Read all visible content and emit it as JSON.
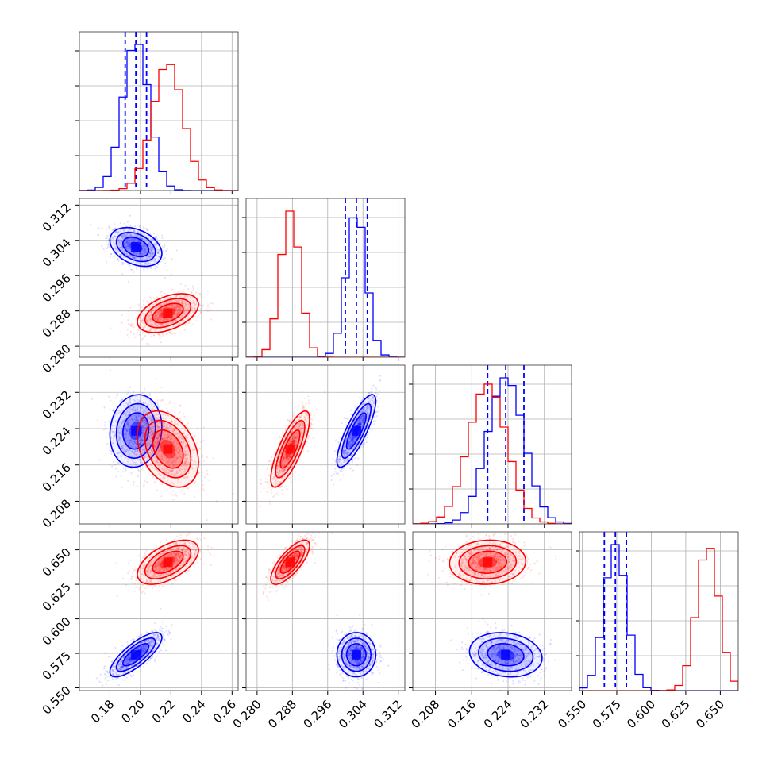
{
  "chart_data": {
    "type": "corner",
    "title": "",
    "series": [
      {
        "name": "",
        "color": "#0000ff",
        "mean": [
          0.197,
          0.3025,
          0.2235,
          0.574
        ],
        "std": [
          0.0085,
          0.0022,
          0.004,
          0.008
        ],
        "corr": [
          [
            1,
            -0.35,
            0.1,
            0.78
          ],
          [
            -0.35,
            1,
            0.82,
            0.0
          ],
          [
            0.1,
            0.82,
            1,
            -0.15
          ],
          [
            0.78,
            0.0,
            -0.15,
            1
          ]
        ],
        "quantiles_16_50_84": [
          [
            0.19,
            0.197,
            0.204
          ],
          [
            0.3,
            0.3025,
            0.305
          ],
          [
            0.2195,
            0.2235,
            0.2275
          ],
          [
            0.566,
            0.574,
            0.582
          ]
        ],
        "show_quantile_lines": true
      },
      {
        "name": "",
        "color": "#ff0000",
        "mean": [
          0.218,
          0.2875,
          0.2195,
          0.641
        ],
        "std": [
          0.01,
          0.0022,
          0.0042,
          0.008
        ],
        "corr": [
          [
            1,
            0.45,
            -0.35,
            0.55
          ],
          [
            0.45,
            1,
            0.78,
            0.75
          ],
          [
            -0.35,
            0.78,
            1,
            0.05
          ],
          [
            0.55,
            0.75,
            0.05,
            1
          ]
        ],
        "show_quantile_lines": false
      }
    ],
    "axes": [
      {
        "range": [
          0.16,
          0.264
        ],
        "ticks": [
          "0.18",
          "0.20",
          "0.22",
          "0.24",
          "0.26"
        ]
      },
      {
        "range": [
          0.2775,
          0.3135
        ],
        "ticks": [
          "0.280",
          "0.288",
          "0.296",
          "0.304",
          "0.312"
        ]
      },
      {
        "range": [
          0.203,
          0.238
        ],
        "ticks": [
          "0.208",
          "0.216",
          "0.224",
          "0.232"
        ]
      },
      {
        "range": [
          0.548,
          0.663
        ],
        "ticks": [
          "0.550",
          "0.575",
          "0.600",
          "0.625",
          "0.650"
        ]
      }
    ],
    "grid": true,
    "xlabel": "",
    "ylabel": ""
  }
}
